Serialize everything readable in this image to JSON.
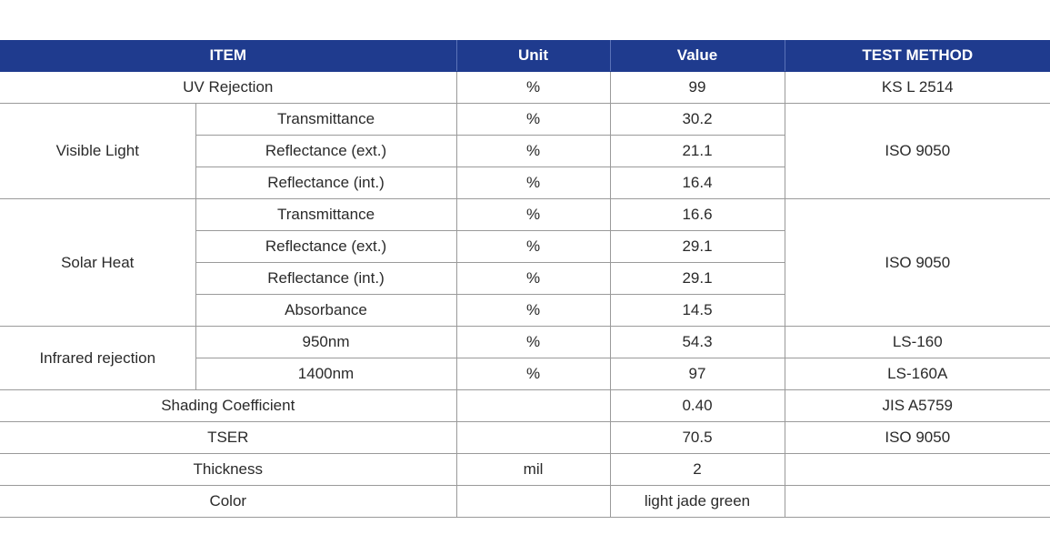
{
  "header": {
    "item": "ITEM",
    "unit": "Unit",
    "value": "Value",
    "method": "TEST METHOD"
  },
  "rows": {
    "uv": {
      "item": "UV Rejection",
      "unit": "%",
      "value": "99",
      "method": "KS L 2514"
    },
    "visible": {
      "group": "Visible Light",
      "method": "ISO 9050",
      "items": [
        {
          "sub": "Transmittance",
          "unit": "%",
          "value": "30.2"
        },
        {
          "sub": "Reflectance (ext.)",
          "unit": "%",
          "value": "21.1"
        },
        {
          "sub": "Reflectance (int.)",
          "unit": "%",
          "value": "16.4"
        }
      ]
    },
    "solar": {
      "group": "Solar Heat",
      "method": "ISO 9050",
      "items": [
        {
          "sub": "Transmittance",
          "unit": "%",
          "value": "16.6"
        },
        {
          "sub": "Reflectance (ext.)",
          "unit": "%",
          "value": "29.1"
        },
        {
          "sub": "Reflectance (int.)",
          "unit": "%",
          "value": "29.1"
        },
        {
          "sub": "Absorbance",
          "unit": "%",
          "value": "14.5"
        }
      ]
    },
    "infrared": {
      "group": "Infrared rejection",
      "items": [
        {
          "sub": "950nm",
          "unit": "%",
          "value": "54.3",
          "method": "LS-160"
        },
        {
          "sub": "1400nm",
          "unit": "%",
          "value": "97",
          "method": "LS-160A"
        }
      ]
    },
    "shading": {
      "item": "Shading Coefficient",
      "unit": "",
      "value": "0.40",
      "method": "JIS A5759"
    },
    "tser": {
      "item": "TSER",
      "unit": "",
      "value": "70.5",
      "method": "ISO 9050"
    },
    "thickness": {
      "item": "Thickness",
      "unit": "mil",
      "value": "2",
      "method": ""
    },
    "color": {
      "item": "Color",
      "unit": "",
      "value": "light jade green",
      "method": ""
    }
  }
}
